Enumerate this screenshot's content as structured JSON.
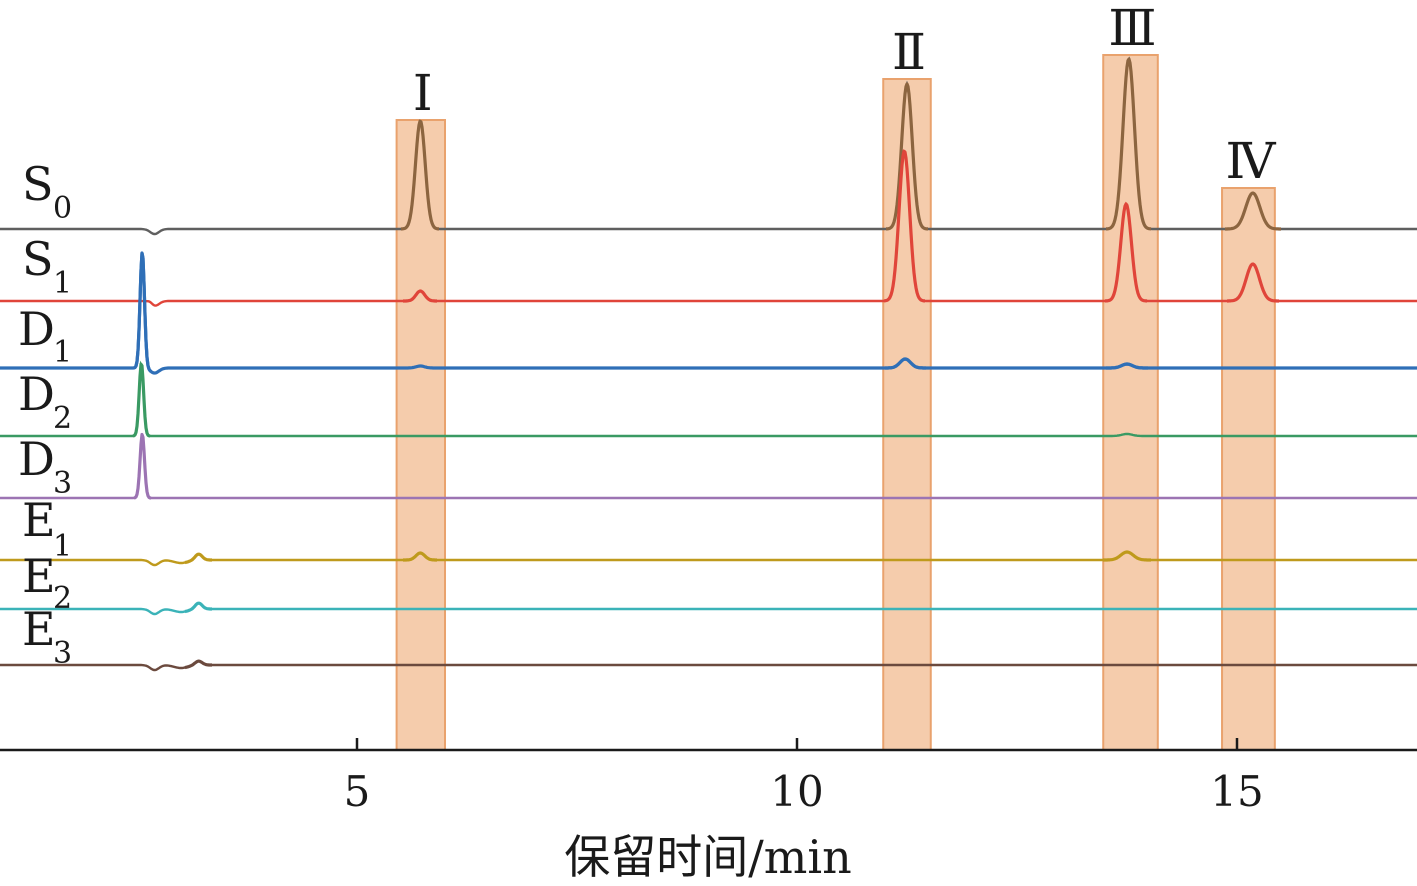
{
  "chart_data": {
    "type": "line",
    "xlabel": "保留时间/min",
    "x_ticks": [
      5,
      10,
      15
    ],
    "xlim": [
      1.0,
      16.9
    ],
    "peak_windows": [
      {
        "label": "Ⅰ",
        "start": 5.45,
        "end": 6.0
      },
      {
        "label": "Ⅱ",
        "start": 10.98,
        "end": 11.52
      },
      {
        "label": "Ⅲ",
        "start": 13.48,
        "end": 14.1
      },
      {
        "label": "Ⅳ",
        "start": 14.83,
        "end": 15.43
      }
    ],
    "series": [
      {
        "name": "S0",
        "label": "S",
        "sub": "0",
        "color": "#5f5f5f",
        "peak_color": "#8c6540",
        "peaks": [
          {
            "x": 5.72,
            "h": 108,
            "w": 0.055
          },
          {
            "x": 11.25,
            "h": 145,
            "w": 0.06
          },
          {
            "x": 13.77,
            "h": 170,
            "w": 0.065
          },
          {
            "x": 15.18,
            "h": 36,
            "w": 0.08
          }
        ]
      },
      {
        "name": "S1",
        "label": "S",
        "sub": "1",
        "color": "#e0453a",
        "peak_color": "#e0453a",
        "peaks": [
          {
            "x": 2.65,
            "h": 2,
            "w": 0.03
          },
          {
            "x": 5.72,
            "h": 10,
            "w": 0.05
          },
          {
            "x": 11.22,
            "h": 150,
            "w": 0.06
          },
          {
            "x": 13.74,
            "h": 97,
            "w": 0.06
          },
          {
            "x": 15.18,
            "h": 37,
            "w": 0.075
          }
        ]
      },
      {
        "name": "D1",
        "label": "D",
        "sub": "1",
        "color": "#2f6fb7",
        "peak_color": "#2f6fb7",
        "peaks": [
          {
            "x": 2.56,
            "h": 116,
            "w": 0.025
          },
          {
            "x": 5.72,
            "h": 2,
            "w": 0.05
          },
          {
            "x": 11.23,
            "h": 9,
            "w": 0.06
          },
          {
            "x": 13.75,
            "h": 4,
            "w": 0.06
          }
        ]
      },
      {
        "name": "D2",
        "label": "D",
        "sub": "2",
        "color": "#3a9a63",
        "peak_color": "#3a9a63",
        "peaks": [
          {
            "x": 2.55,
            "h": 73,
            "w": 0.025
          },
          {
            "x": 13.75,
            "h": 2,
            "w": 0.06
          }
        ]
      },
      {
        "name": "D3",
        "label": "D",
        "sub": "3",
        "color": "#9c74b3",
        "peak_color": "#9c74b3",
        "peaks": [
          {
            "x": 2.56,
            "h": 64,
            "w": 0.025
          }
        ]
      },
      {
        "name": "E1",
        "label": "E",
        "sub": "1",
        "color": "#bf9a1c",
        "peak_color": "#bf9a1c",
        "peaks": [
          {
            "x": 5.72,
            "h": 7,
            "w": 0.05
          },
          {
            "x": 13.75,
            "h": 8,
            "w": 0.07
          },
          {
            "x": 3.2,
            "h": 6,
            "w": 0.04
          }
        ]
      },
      {
        "name": "E2",
        "label": "E",
        "sub": "2",
        "color": "#3bb3b8",
        "peak_color": "#3bb3b8",
        "peaks": [
          {
            "x": 3.2,
            "h": 6,
            "w": 0.04
          }
        ]
      },
      {
        "name": "E3",
        "label": "E",
        "sub": "3",
        "color": "#6b4a3e",
        "peak_color": "#6b4a3e",
        "peaks": [
          {
            "x": 3.2,
            "h": 4,
            "w": 0.04
          }
        ]
      }
    ]
  }
}
